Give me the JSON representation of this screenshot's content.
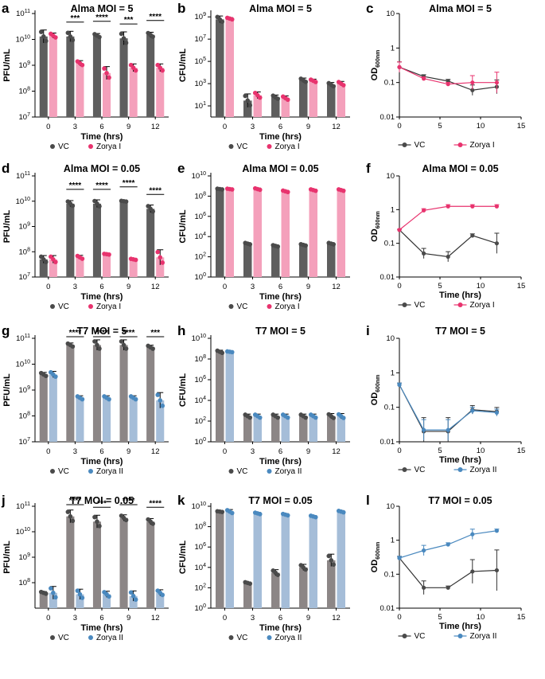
{
  "colors": {
    "vc_bar": "#5e5e5e",
    "vc_bar_t7": "#8c8686",
    "vc_point": "#4a4a4a",
    "zorya1_bar": "#f4a0bb",
    "zorya1_point": "#e8336e",
    "zorya2_bar": "#a5bdd8",
    "zorya2_point": "#4a89bf"
  },
  "legend_labels": {
    "alma": [
      "VC",
      "Zorya I"
    ],
    "t7": [
      "VC",
      "Zorya II"
    ]
  },
  "chart_data": [
    {
      "id": "a",
      "panel_label": "a",
      "type": "bar",
      "title": "Alma MOI = 5",
      "ylabel": "PFU/mL",
      "xlabel": "Time (hrs)",
      "categories": [
        "0",
        "3",
        "6",
        "9",
        "12"
      ],
      "yscale": "log",
      "ylim_exp": [
        7,
        11
      ],
      "ytick_exp": [
        7,
        8,
        9,
        10,
        11
      ],
      "ytick_labels": [
        "10^7",
        "10^8",
        "10^9",
        "10^10",
        "10^11"
      ],
      "series": [
        {
          "name": "VC",
          "values": [
            13000000000.0,
            13000000000.0,
            14000000000.0,
            11000000000.0,
            15000000000.0
          ],
          "err": [
            0.25,
            0.2,
            0.08,
            0.25,
            0.1
          ]
        },
        {
          "name": "Zorya I",
          "values": [
            14000000000.0,
            1200000000.0,
            500000000.0,
            800000000.0,
            800000000.0
          ],
          "err": [
            0.1,
            0.1,
            0.25,
            0.15,
            0.15
          ]
        }
      ],
      "significance": [
        "",
        "***",
        "****",
        "***",
        "****"
      ],
      "legend": "alma"
    },
    {
      "id": "b",
      "panel_label": "b",
      "type": "bar",
      "title": "Alma MOI = 5",
      "ylabel": "CFU/mL",
      "xlabel": "Time (hrs)",
      "categories": [
        "0",
        "3",
        "6",
        "9",
        "12"
      ],
      "yscale": "log",
      "ylim_exp": [
        0,
        9.3
      ],
      "ytick_exp": [
        1,
        3,
        5,
        7,
        9
      ],
      "ytick_labels": [
        "10^1",
        "10^3",
        "10^5",
        "10^7",
        "10^9"
      ],
      "series": [
        {
          "name": "VC",
          "values": [
            600000000.0,
            30,
            60,
            2000.0,
            800
          ],
          "err": [
            0.3,
            0.6,
            0.2,
            0.2,
            0.2
          ]
        },
        {
          "name": "Zorya I",
          "values": [
            700000000.0,
            90,
            50,
            1800.0,
            1000.0
          ],
          "err": [
            0.1,
            0.3,
            0.2,
            0.15,
            0.2
          ]
        }
      ],
      "significance": [
        "",
        "",
        "",
        "",
        ""
      ],
      "legend": "alma"
    },
    {
      "id": "c",
      "panel_label": "c",
      "type": "line",
      "title": "Alma MOI = 5",
      "ylabel": "OD",
      "ylabel_sub": "600nm",
      "xlabel": "",
      "x": [
        0,
        3,
        6,
        9,
        12
      ],
      "yscale": "log",
      "xlim": [
        0,
        15
      ],
      "xticks": [
        0,
        5,
        10,
        15
      ],
      "ylim": [
        0.01,
        10
      ],
      "ytick_values": [
        0.01,
        0.1,
        1,
        10
      ],
      "ytick_labels": [
        "0.01",
        "0.1",
        "1",
        "10"
      ],
      "series": [
        {
          "name": "VC",
          "values": [
            0.28,
            0.15,
            0.11,
            0.06,
            0.075
          ],
          "err": [
            0.15,
            0.05,
            0.05,
            0.15,
            0.2
          ]
        },
        {
          "name": "Zorya I",
          "values": [
            0.28,
            0.13,
            0.09,
            0.1,
            0.1
          ],
          "err": [
            0.15,
            0.05,
            0.05,
            0.2,
            0.3
          ]
        }
      ],
      "legend": "alma"
    },
    {
      "id": "d",
      "panel_label": "d",
      "type": "bar",
      "title": "Alma MOI = 0.05",
      "ylabel": "PFU/mL",
      "xlabel": "Time (hrs)",
      "categories": [
        "0",
        "3",
        "6",
        "9",
        "12"
      ],
      "yscale": "log",
      "ylim_exp": [
        7,
        11
      ],
      "ytick_exp": [
        7,
        8,
        9,
        10,
        11
      ],
      "ytick_labels": [
        "10^7",
        "10^8",
        "10^9",
        "10^10",
        "10^11"
      ],
      "series": [
        {
          "name": "VC",
          "values": [
            50000000.0,
            8000000000.0,
            8000000000.0,
            10000000000.0,
            5000000000.0
          ],
          "err": [
            0.15,
            0.12,
            0.15,
            0.02,
            0.15
          ]
        },
        {
          "name": "Zorya I",
          "values": [
            50000000.0,
            60000000.0,
            80000000.0,
            50000000.0,
            60000000.0
          ],
          "err": [
            0.15,
            0.08,
            0.02,
            0.03,
            0.3
          ]
        }
      ],
      "significance": [
        "",
        "****",
        "****",
        "****",
        "****"
      ],
      "legend": "alma"
    },
    {
      "id": "e",
      "panel_label": "e",
      "type": "bar",
      "title": "Alma MOI = 0.05",
      "ylabel": "CFU/mL",
      "xlabel": "Time (hrs)",
      "categories": [
        "0",
        "3",
        "6",
        "9",
        "12"
      ],
      "yscale": "log",
      "ylim_exp": [
        0,
        10
      ],
      "ytick_exp": [
        0,
        2,
        4,
        6,
        8,
        10
      ],
      "ytick_labels": [
        "10^0",
        "10^2",
        "10^4",
        "10^6",
        "10^8",
        "10^10"
      ],
      "series": [
        {
          "name": "VC",
          "values": [
            500000000.0,
            2000.0,
            1200.0,
            1500.0,
            2000.0
          ],
          "err": [
            0.05,
            0.1,
            0.1,
            0.1,
            0.1
          ]
        },
        {
          "name": "Zorya I",
          "values": [
            500000000.0,
            500000000.0,
            300000000.0,
            400000000.0,
            400000000.0
          ],
          "err": [
            0.05,
            0.1,
            0.1,
            0.1,
            0.1
          ]
        }
      ],
      "significance": [
        "",
        "",
        "",
        "",
        ""
      ],
      "legend": "alma"
    },
    {
      "id": "f",
      "panel_label": "f",
      "type": "line",
      "title": "Alma MOI = 0.05",
      "ylabel": "OD",
      "ylabel_sub": "600nm",
      "xlabel": "Time (hrs)",
      "x": [
        0,
        3,
        6,
        9,
        12
      ],
      "yscale": "log",
      "xlim": [
        0,
        15
      ],
      "xticks": [
        0,
        5,
        10,
        15
      ],
      "ylim": [
        0.01,
        10
      ],
      "ytick_values": [
        0.01,
        0.1,
        1,
        10
      ],
      "ytick_labels": [
        "0.01",
        "0.1",
        "1",
        "10"
      ],
      "series": [
        {
          "name": "VC",
          "values": [
            0.25,
            0.05,
            0.04,
            0.17,
            0.1
          ],
          "err": [
            0.02,
            0.15,
            0.15,
            0.05,
            0.3
          ]
        },
        {
          "name": "Zorya I",
          "values": [
            0.25,
            0.95,
            1.25,
            1.25,
            1.25
          ],
          "err": [
            0.02,
            0.05,
            0.05,
            0.05,
            0.05
          ]
        }
      ],
      "legend": "alma"
    },
    {
      "id": "g",
      "panel_label": "g",
      "type": "bar",
      "title": "T7 MOI = 5",
      "ylabel": "PFU/mL",
      "xlabel": "Time (hrs)",
      "categories": [
        "0",
        "3",
        "6",
        "9",
        "12"
      ],
      "yscale": "log",
      "ylim_exp": [
        7,
        11
      ],
      "ytick_exp": [
        7,
        8,
        9,
        10,
        11
      ],
      "ytick_labels": [
        "10^7",
        "10^8",
        "10^9",
        "10^10",
        "10^11"
      ],
      "series": [
        {
          "name": "VC",
          "values": [
            4000000000.0,
            55000000000.0,
            55000000000.0,
            55000000000.0,
            45000000000.0
          ],
          "err": [
            0.08,
            0.08,
            0.2,
            0.2,
            0.08
          ]
        },
        {
          "name": "Zorya II",
          "values": [
            4000000000.0,
            500000000.0,
            500000000.0,
            500000000.0,
            400000000.0
          ],
          "err": [
            0.12,
            0.08,
            0.08,
            0.08,
            0.3
          ]
        }
      ],
      "significance": [
        "",
        "****",
        "****",
        "****",
        "***"
      ],
      "legend": "t7"
    },
    {
      "id": "h",
      "panel_label": "h",
      "type": "bar",
      "title": "T7 MOI = 5",
      "ylabel": "CFU/mL",
      "xlabel": "Time (hrs)",
      "categories": [
        "0",
        "3",
        "6",
        "9",
        "12"
      ],
      "yscale": "log",
      "ylim_exp": [
        0,
        10
      ],
      "ytick_exp": [
        0,
        2,
        4,
        6,
        8,
        10
      ],
      "ytick_labels": [
        "10^0",
        "10^2",
        "10^4",
        "10^6",
        "10^8",
        "10^10"
      ],
      "series": [
        {
          "name": "VC",
          "values": [
            500000000.0,
            300,
            300,
            300,
            300
          ],
          "err": [
            0.15,
            0.2,
            0.2,
            0.2,
            0.25
          ]
        },
        {
          "name": "Zorya II",
          "values": [
            500000000.0,
            300,
            300,
            300,
            300
          ],
          "err": [
            0.05,
            0.2,
            0.2,
            0.2,
            0.25
          ]
        }
      ],
      "significance": [
        "",
        "",
        "",
        "",
        ""
      ],
      "legend": "t7"
    },
    {
      "id": "i",
      "panel_label": "i",
      "type": "line",
      "title": "T7 MOI = 5",
      "ylabel": "OD",
      "ylabel_sub": "600nm",
      "xlabel": "Time (hrs)",
      "x": [
        0,
        3,
        6,
        9,
        12
      ],
      "yscale": "log",
      "xlim": [
        0,
        15
      ],
      "xticks": [
        0,
        5,
        10,
        15
      ],
      "ylim": [
        0.01,
        10
      ],
      "ytick_values": [
        0.01,
        0.1,
        1,
        10
      ],
      "ytick_labels": [
        "0.01",
        "0.1",
        "1",
        "10"
      ],
      "series": [
        {
          "name": "VC",
          "values": [
            0.45,
            0.02,
            0.02,
            0.085,
            0.075
          ],
          "err": [
            0.05,
            0.4,
            0.4,
            0.12,
            0.12
          ]
        },
        {
          "name": "Zorya II",
          "values": [
            0.45,
            0.022,
            0.022,
            0.08,
            0.07
          ],
          "err": [
            0.05,
            0.3,
            0.3,
            0.1,
            0.1
          ]
        }
      ],
      "legend": "t7"
    },
    {
      "id": "j",
      "panel_label": "j",
      "type": "bar",
      "title": "T7 MOI = 0.05",
      "ylabel": "PFU/mL",
      "xlabel": "Time (hrs)",
      "categories": [
        "0",
        "3",
        "6",
        "9",
        "12"
      ],
      "yscale": "log",
      "ylim_exp": [
        7,
        11
      ],
      "ytick_exp": [
        8,
        9,
        10,
        11
      ],
      "ytick_labels": [
        "10^8",
        "10^9",
        "10^10",
        "10^11"
      ],
      "series": [
        {
          "name": "VC",
          "values": [
            40000000.0,
            40000000000.0,
            25000000000.0,
            35000000000.0,
            25000000000.0
          ],
          "err": [
            0.05,
            0.25,
            0.25,
            0.12,
            0.12
          ]
        },
        {
          "name": "Zorya II",
          "values": [
            40000000.0,
            35000000.0,
            35000000.0,
            30000000.0,
            40000000.0
          ],
          "err": [
            0.25,
            0.2,
            0.12,
            0.2,
            0.12
          ]
        }
      ],
      "significance": [
        "",
        "****",
        "***",
        "****",
        "****"
      ],
      "legend": "t7"
    },
    {
      "id": "k",
      "panel_label": "k",
      "type": "bar",
      "title": "T7 MOI = 0.05",
      "ylabel": "CFU/mL",
      "xlabel": "Time (hrs)",
      "categories": [
        "0",
        "3",
        "6",
        "9",
        "12"
      ],
      "yscale": "log",
      "ylim_exp": [
        0,
        10
      ],
      "ytick_exp": [
        0,
        2,
        4,
        6,
        8,
        10
      ],
      "ytick_labels": [
        "10^0",
        "10^2",
        "10^4",
        "10^6",
        "10^8",
        "10^10"
      ],
      "series": [
        {
          "name": "VC",
          "values": [
            3000000000.0,
            300,
            3000.0,
            10000.0,
            50000.0
          ],
          "err": [
            0.05,
            0.1,
            0.3,
            0.3,
            0.6
          ]
        },
        {
          "name": "Zorya II",
          "values": [
            3000000000.0,
            2000000000.0,
            1500000000.0,
            1000000000.0,
            3000000000.0
          ],
          "err": [
            0.2,
            0.1,
            0.1,
            0.1,
            0.1
          ]
        }
      ],
      "significance": [
        "",
        "",
        "",
        "",
        ""
      ],
      "legend": "t7"
    },
    {
      "id": "l",
      "panel_label": "l",
      "type": "line",
      "title": "T7 MOI = 0.05",
      "ylabel": "OD",
      "ylabel_sub": "600nm",
      "xlabel": "Time (hrs)",
      "x": [
        0,
        3,
        6,
        9,
        12
      ],
      "yscale": "log",
      "xlim": [
        0,
        15
      ],
      "xticks": [
        0,
        5,
        10,
        15
      ],
      "ylim": [
        0.01,
        10
      ],
      "ytick_values": [
        0.01,
        0.1,
        1,
        10
      ],
      "ytick_labels": [
        "0.01",
        "0.1",
        "1",
        "10"
      ],
      "series": [
        {
          "name": "VC",
          "values": [
            0.3,
            0.04,
            0.04,
            0.12,
            0.13
          ],
          "err": [
            0.05,
            0.2,
            0.05,
            0.35,
            0.6
          ]
        },
        {
          "name": "Zorya II",
          "values": [
            0.3,
            0.5,
            0.75,
            1.5,
            1.9
          ],
          "err": [
            0.05,
            0.15,
            0.05,
            0.15,
            0.05
          ]
        }
      ],
      "legend": "t7"
    }
  ]
}
